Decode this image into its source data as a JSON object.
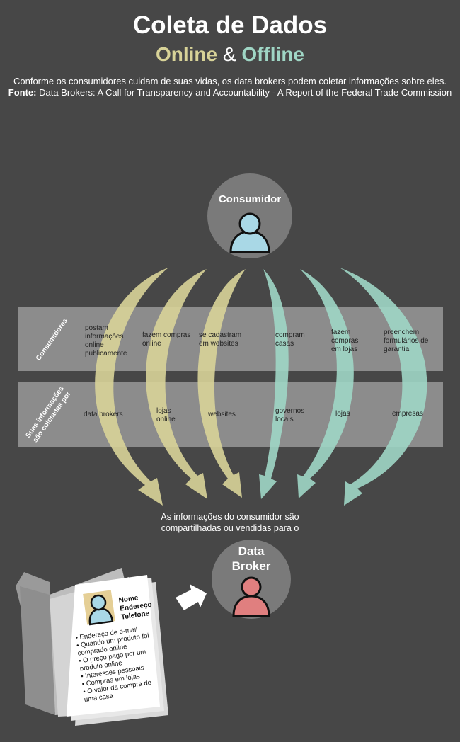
{
  "header": {
    "title": "Coleta de Dados",
    "online": "Online",
    "amp": "&",
    "offline": "Offline",
    "intro": "Conforme os consumidores cuidam de suas vidas, os data brokers podem coletar informações sobre eles.",
    "source_label": "Fonte:",
    "source_text": "Data Brokers: A Call for Transparency and Accountability  - A Report of the Federal Trade Commission"
  },
  "consumer": {
    "label": "Consumidor"
  },
  "rows": {
    "row1_label": "Consumidores",
    "row2_label_line1": "Suas informações",
    "row2_label_line2": "são coletadas por"
  },
  "columns": [
    {
      "action": "postam\ninformações\nonline\npublicamente",
      "collector": "data brokers"
    },
    {
      "action": "fazem compras\nonline",
      "collector": "lojas\nonline"
    },
    {
      "action": "se cadastram\nem websites",
      "collector": "websites"
    },
    {
      "action": "compram\ncasas",
      "collector": "governos\nlocais"
    },
    {
      "action": "fazem\ncompras\nem lojas",
      "collector": "lojas"
    },
    {
      "action": "preenchem\nformulários de\ngarantia",
      "collector": "empresas"
    }
  ],
  "shared_text_line1": "As informações do consumidor são",
  "shared_text_line2": "compartilhadas ou vendidas para o",
  "broker": {
    "label_line1": "Data",
    "label_line2": "Broker"
  },
  "profile": {
    "fields": [
      "Nome",
      "Endereço",
      "Telefone"
    ],
    "items": [
      "• Endereço de e-mail",
      "• Quando um produto foi comprado online",
      "• O preço pago por um produto online",
      "• Interesses pessoais",
      "• Compras em lojas",
      "• O valor da compra de uma casa"
    ]
  },
  "colors": {
    "background": "#474747",
    "online": "#d8d398",
    "offline": "#9fd6c5",
    "band": "#8a8a8a",
    "circle": "#7a7a7a",
    "consumer_person": "#a9d8e6",
    "broker_person": "#e07f7f"
  }
}
